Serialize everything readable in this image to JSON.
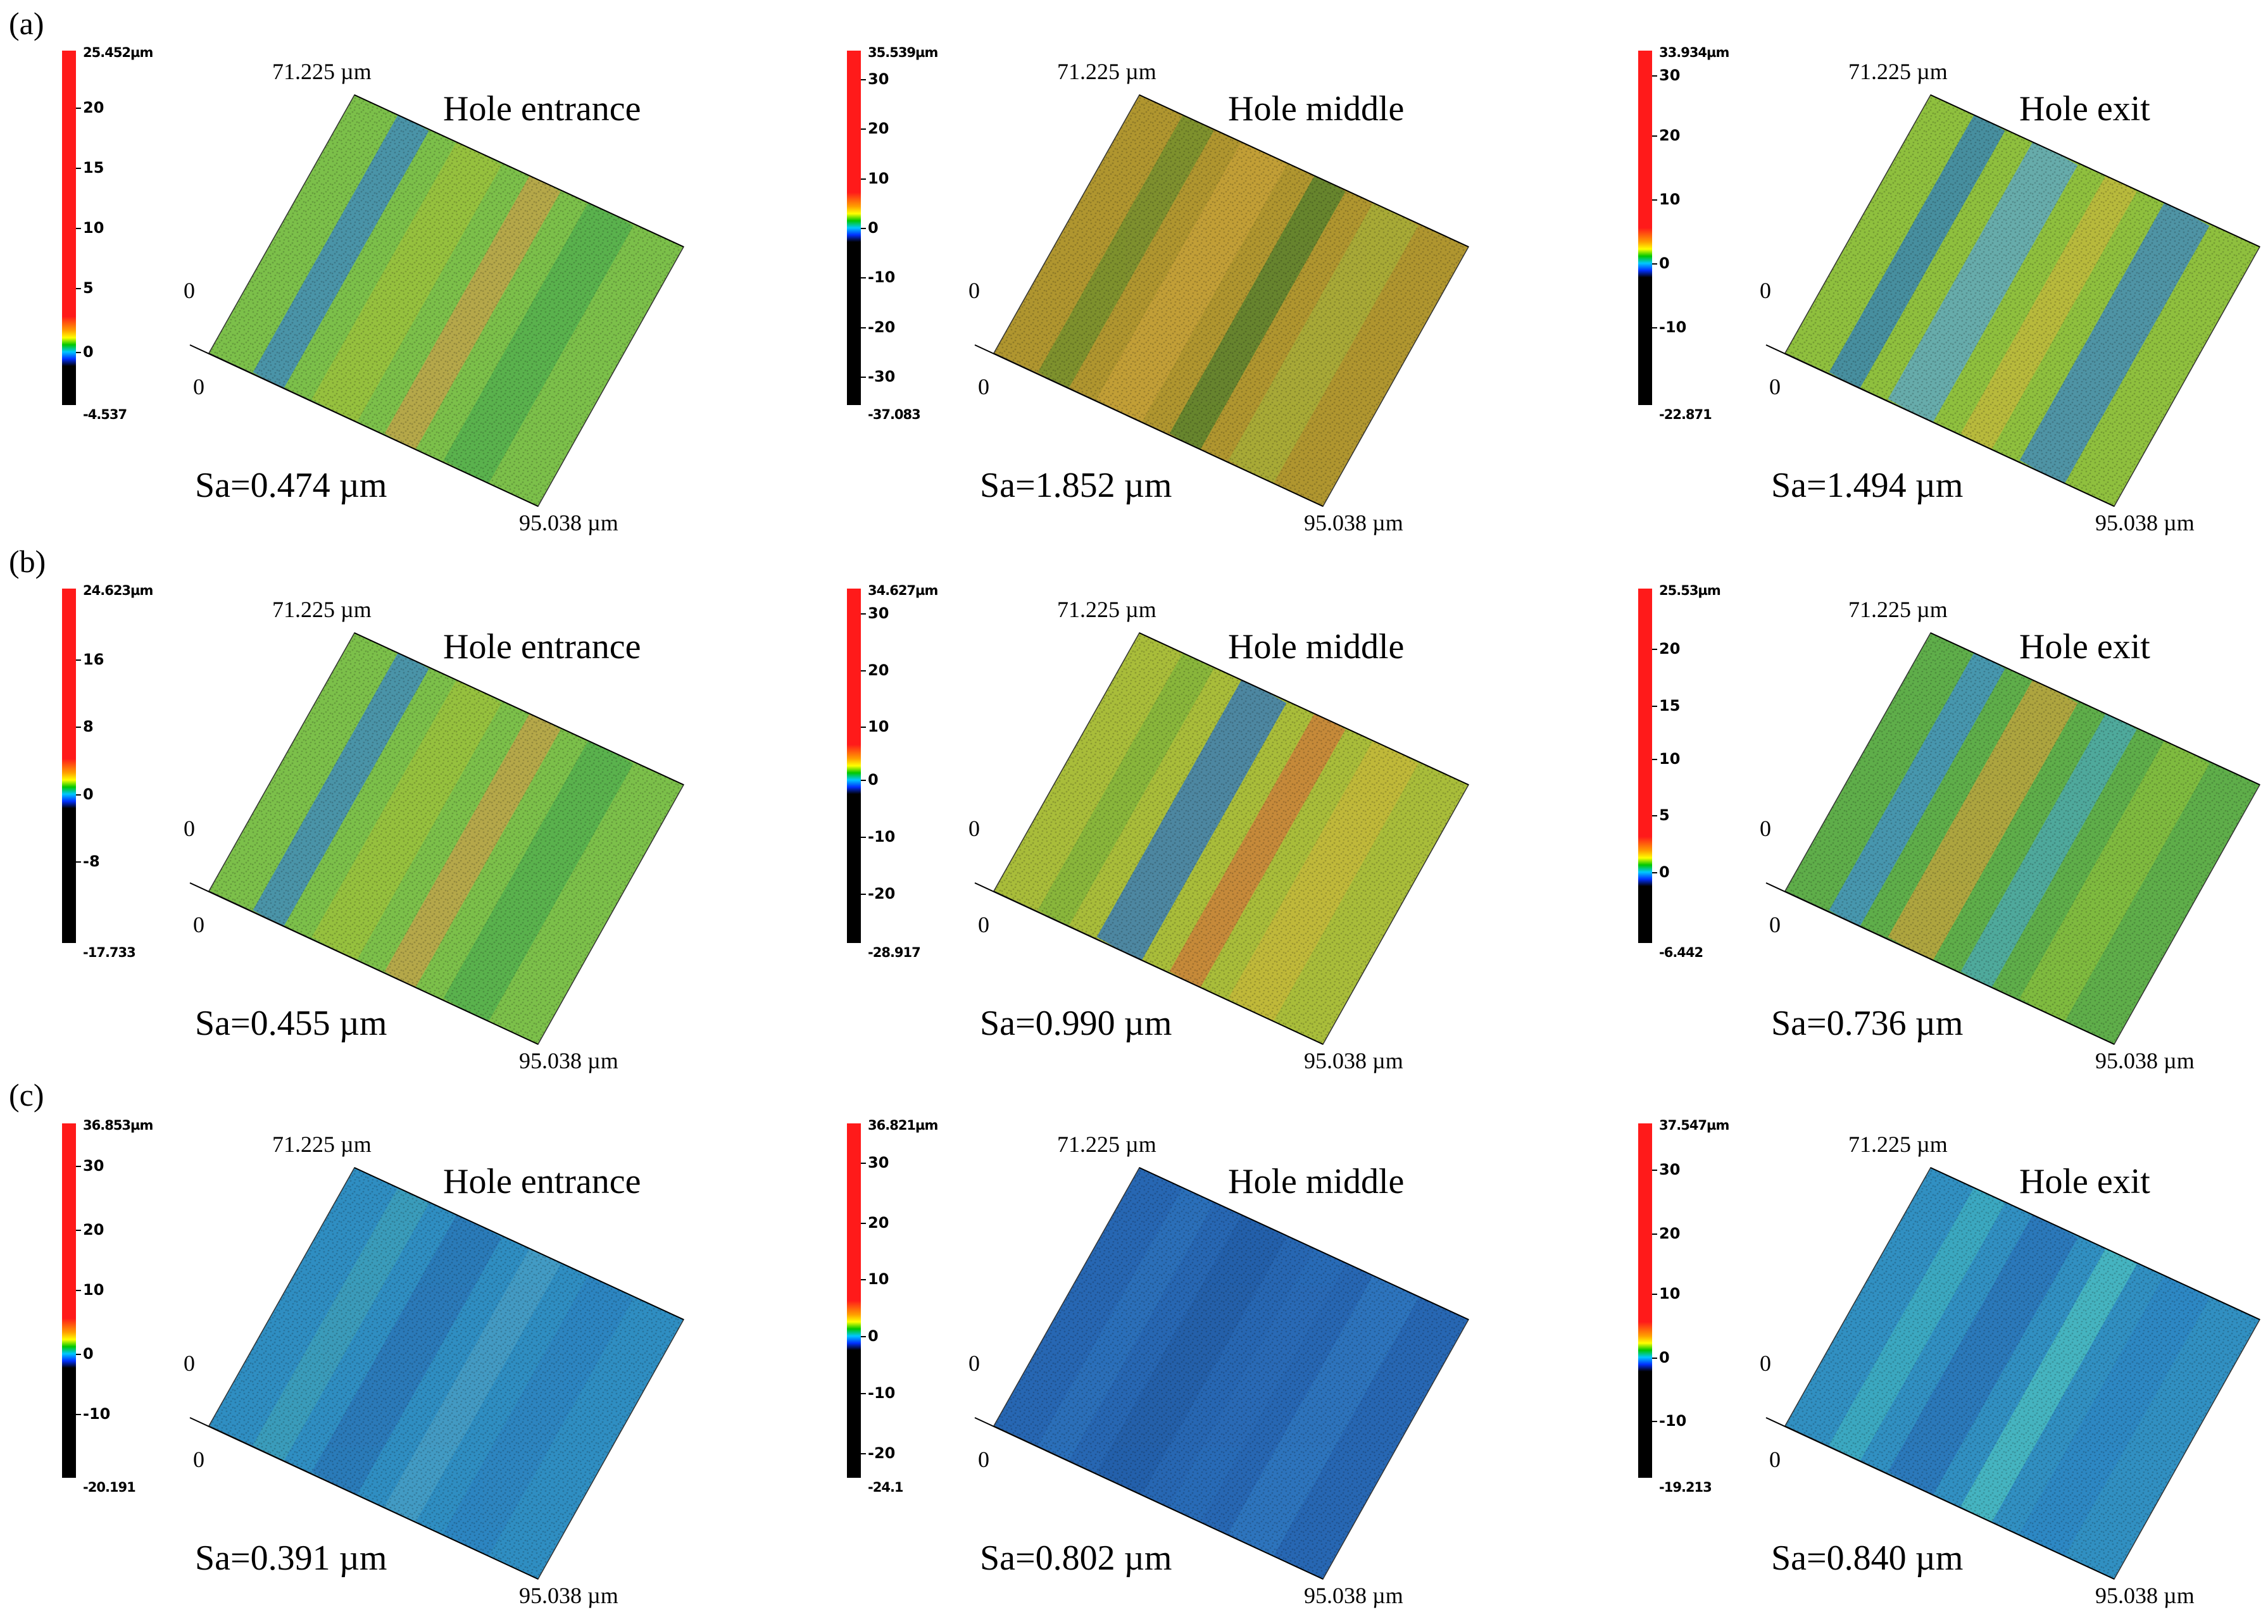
{
  "row_labels": [
    "(a)",
    "(b)",
    "(c)"
  ],
  "axis": {
    "y_extent": "71.225 µm",
    "x_extent": "95.038 µm",
    "origin": "0"
  },
  "panels": [
    {
      "row": 0,
      "col": 0,
      "location": "Hole entrance",
      "sa": "Sa=0.474 µm",
      "cbar_max": "25.452µm",
      "cbar_min": "-4.537",
      "ticks": [
        {
          "label": "20",
          "f": 0.16
        },
        {
          "label": "15",
          "f": 0.33
        },
        {
          "label": "10",
          "f": 0.5
        },
        {
          "label": "5",
          "f": 0.67
        },
        {
          "label": "0",
          "f": 0.85
        }
      ],
      "scheme": "green",
      "zero_frac": 0.85
    },
    {
      "row": 0,
      "col": 1,
      "location": "Hole middle",
      "sa": "Sa=1.852 µm",
      "cbar_max": "35.539µm",
      "cbar_min": "-37.083",
      "ticks": [
        {
          "label": "30",
          "f": 0.08
        },
        {
          "label": "20",
          "f": 0.22
        },
        {
          "label": "10",
          "f": 0.36
        },
        {
          "label": "0",
          "f": 0.5
        },
        {
          "label": "-10",
          "f": 0.64
        },
        {
          "label": "-20",
          "f": 0.78
        },
        {
          "label": "-30",
          "f": 0.92
        }
      ],
      "scheme": "olive",
      "zero_frac": 0.5
    },
    {
      "row": 0,
      "col": 2,
      "location": "Hole exit",
      "sa": "Sa=1.494 µm",
      "cbar_max": "33.934µm",
      "cbar_min": "-22.871",
      "ticks": [
        {
          "label": "30",
          "f": 0.07
        },
        {
          "label": "20",
          "f": 0.24
        },
        {
          "label": "10",
          "f": 0.42
        },
        {
          "label": "0",
          "f": 0.6
        },
        {
          "label": "-10",
          "f": 0.78
        }
      ],
      "scheme": "greenblue",
      "zero_frac": 0.6
    },
    {
      "row": 1,
      "col": 0,
      "location": "Hole entrance",
      "sa": "Sa=0.455 µm",
      "cbar_max": "24.623µm",
      "cbar_min": "-17.733",
      "ticks": [
        {
          "label": "16",
          "f": 0.2
        },
        {
          "label": "8",
          "f": 0.39
        },
        {
          "label": "0",
          "f": 0.58
        },
        {
          "label": "-8",
          "f": 0.77
        }
      ],
      "scheme": "green",
      "zero_frac": 0.58
    },
    {
      "row": 1,
      "col": 1,
      "location": "Hole middle",
      "sa": "Sa=0.990 µm",
      "cbar_max": "34.627µm",
      "cbar_min": "-28.917",
      "ticks": [
        {
          "label": "30",
          "f": 0.07
        },
        {
          "label": "20",
          "f": 0.23
        },
        {
          "label": "10",
          "f": 0.39
        },
        {
          "label": "0",
          "f": 0.54
        },
        {
          "label": "-10",
          "f": 0.7
        },
        {
          "label": "-20",
          "f": 0.86
        }
      ],
      "scheme": "yellowgreen",
      "zero_frac": 0.54
    },
    {
      "row": 1,
      "col": 2,
      "location": "Hole exit",
      "sa": "Sa=0.736 µm",
      "cbar_max": "25.53µm",
      "cbar_min": "-6.442",
      "ticks": [
        {
          "label": "20",
          "f": 0.17
        },
        {
          "label": "15",
          "f": 0.33
        },
        {
          "label": "10",
          "f": 0.48
        },
        {
          "label": "5",
          "f": 0.64
        },
        {
          "label": "0",
          "f": 0.8
        }
      ],
      "scheme": "mixed",
      "zero_frac": 0.8
    },
    {
      "row": 2,
      "col": 0,
      "location": "Hole entrance",
      "sa": "Sa=0.391 µm",
      "cbar_max": "36.853µm",
      "cbar_min": "-20.191",
      "ticks": [
        {
          "label": "30",
          "f": 0.12
        },
        {
          "label": "20",
          "f": 0.3
        },
        {
          "label": "10",
          "f": 0.47
        },
        {
          "label": "0",
          "f": 0.65
        },
        {
          "label": "-10",
          "f": 0.82
        }
      ],
      "scheme": "blue",
      "zero_frac": 0.65
    },
    {
      "row": 2,
      "col": 1,
      "location": "Hole middle",
      "sa": "Sa=0.802 µm",
      "cbar_max": "36.821µm",
      "cbar_min": "-24.1",
      "ticks": [
        {
          "label": "30",
          "f": 0.11
        },
        {
          "label": "20",
          "f": 0.28
        },
        {
          "label": "10",
          "f": 0.44
        },
        {
          "label": "0",
          "f": 0.6
        },
        {
          "label": "-10",
          "f": 0.76
        },
        {
          "label": "-20",
          "f": 0.93
        }
      ],
      "scheme": "darkblue",
      "zero_frac": 0.6
    },
    {
      "row": 2,
      "col": 2,
      "location": "Hole exit",
      "sa": "Sa=0.840 µm",
      "cbar_max": "37.547µm",
      "cbar_min": "-19.213",
      "ticks": [
        {
          "label": "30",
          "f": 0.13
        },
        {
          "label": "20",
          "f": 0.31
        },
        {
          "label": "10",
          "f": 0.48
        },
        {
          "label": "0",
          "f": 0.66
        },
        {
          "label": "-10",
          "f": 0.84
        }
      ],
      "scheme": "cyanblue",
      "zero_frac": 0.66
    }
  ],
  "colors": {
    "scale_high": "#ff1a1a",
    "scale_low": "#000000"
  }
}
